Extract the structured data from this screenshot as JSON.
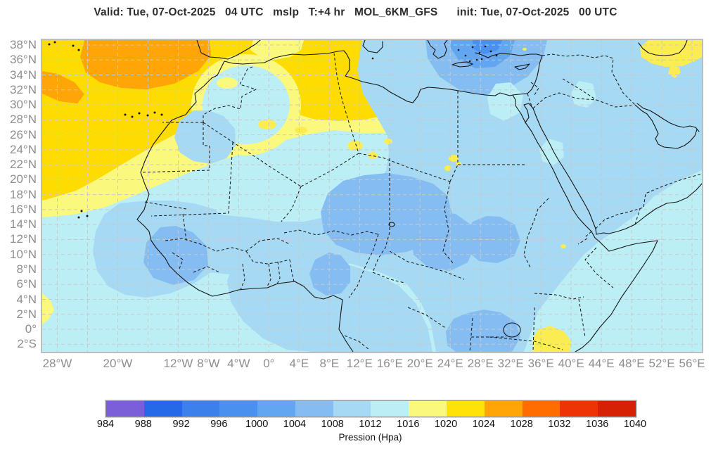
{
  "title": "Valid: Tue, 07-Oct-2025   04 UTC   mslp   T:+4 hr   MOL_6KM_GFS      init: Tue, 07-Oct-2025   00 UTC",
  "map": {
    "lat_ticks": [
      {
        "label": "38°N",
        "value": 38
      },
      {
        "label": "36°N",
        "value": 36
      },
      {
        "label": "34°N",
        "value": 34
      },
      {
        "label": "32°N",
        "value": 32
      },
      {
        "label": "30°N",
        "value": 30
      },
      {
        "label": "28°N",
        "value": 28
      },
      {
        "label": "26°N",
        "value": 26
      },
      {
        "label": "24°N",
        "value": 24
      },
      {
        "label": "22°N",
        "value": 22
      },
      {
        "label": "20°N",
        "value": 20
      },
      {
        "label": "18°N",
        "value": 18
      },
      {
        "label": "16°N",
        "value": 16
      },
      {
        "label": "14°N",
        "value": 14
      },
      {
        "label": "12°N",
        "value": 12
      },
      {
        "label": "10°N",
        "value": 10
      },
      {
        "label": "8°N",
        "value": 8
      },
      {
        "label": "6°N",
        "value": 6
      },
      {
        "label": "4°N",
        "value": 4
      },
      {
        "label": "2°N",
        "value": 2
      },
      {
        "label": "0°",
        "value": 0
      },
      {
        "label": "2°S",
        "value": -2
      }
    ],
    "lon_ticks": [
      {
        "label": "28°W",
        "value": -28
      },
      {
        "label": "20°W",
        "value": -20
      },
      {
        "label": "12°W",
        "value": -12
      },
      {
        "label": "8°W",
        "value": -8
      },
      {
        "label": "4°W",
        "value": -4
      },
      {
        "label": "0°",
        "value": 0
      },
      {
        "label": "4°E",
        "value": 4
      },
      {
        "label": "8°E",
        "value": 8
      },
      {
        "label": "12°E",
        "value": 12
      },
      {
        "label": "16°E",
        "value": 16
      },
      {
        "label": "20°E",
        "value": 20
      },
      {
        "label": "24°E",
        "value": 24
      },
      {
        "label": "28°E",
        "value": 28
      },
      {
        "label": "32°E",
        "value": 32
      },
      {
        "label": "36°E",
        "value": 36
      },
      {
        "label": "40°E",
        "value": 40
      },
      {
        "label": "44°E",
        "value": 44
      },
      {
        "label": "48°E",
        "value": 48
      },
      {
        "label": "52°E",
        "value": 52
      },
      {
        "label": "56°E",
        "value": 56
      }
    ]
  },
  "colorbar": {
    "values": [
      984,
      988,
      992,
      996,
      1000,
      1004,
      1008,
      1012,
      1016,
      1020,
      1024,
      1028,
      1032,
      1036,
      1040
    ],
    "colors": [
      "#7a5fd8",
      "#2569e8",
      "#3c80ec",
      "#4a90ef",
      "#62a5f1",
      "#85bdf2",
      "#a6d9f3",
      "#bceef6",
      "#fbf87e",
      "#ffe208",
      "#ffa507",
      "#ff6d00",
      "#ee3407",
      "#d62104"
    ],
    "label": "Pression (Hpa)"
  },
  "palette": {
    "c996": "#4a90ef",
    "c1000": "#62a5f1",
    "c1004": "#85bdf2",
    "c1008": "#a6d9f3",
    "c1012": "#bceef6",
    "c1016": "#fbf87e",
    "c1020": "#ffdc00",
    "c1024": "#ffa507",
    "yellow_spot": "#fbec52",
    "grid": "#c9c9c9",
    "frame": "#bdbdbd",
    "line": "#141414",
    "tick_text": "#8e8e8e",
    "title_text": "#2e2e2e"
  }
}
